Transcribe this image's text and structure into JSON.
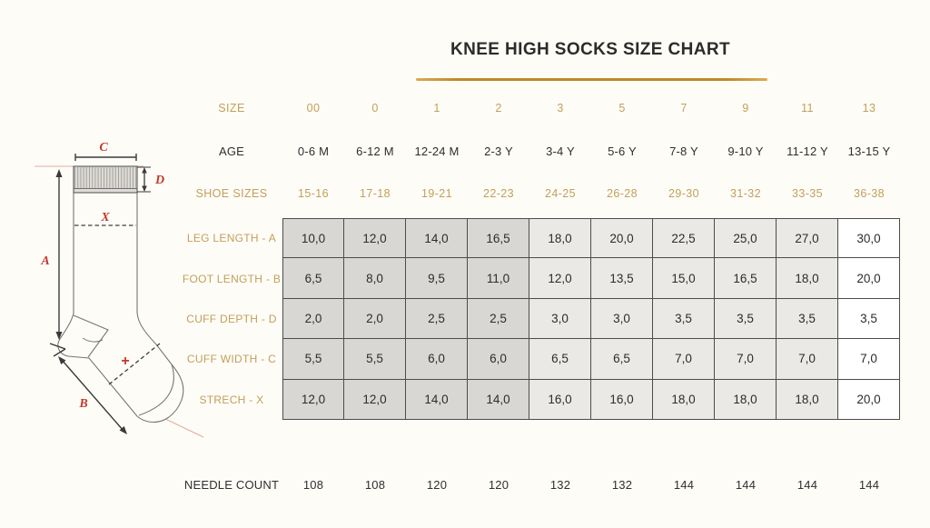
{
  "title": "KNEE HIGH SOCKS SIZE CHART",
  "colors": {
    "gold_text": "#c2a05a",
    "title_underline": "#bf8828",
    "dark_text": "#2f2f2f",
    "diagram_red": "#c4392b",
    "cell_dark": "#d8d7d4",
    "cell_light": "#eae9e6",
    "cell_white": "#ffffff",
    "table_border": "#4c4c4c",
    "background": "#fdfcf7"
  },
  "diagram": {
    "labels": {
      "leg_length": "A",
      "foot_length": "B",
      "cuff_width": "C",
      "cuff_depth": "D",
      "stretch_leg": "X",
      "stretch_foot": "+"
    }
  },
  "chart_data": {
    "type": "table",
    "title": "KNEE HIGH SOCKS SIZE CHART",
    "columns": [
      "00",
      "0",
      "1",
      "2",
      "3",
      "5",
      "7",
      "9",
      "11",
      "13"
    ],
    "rows": [
      {
        "label": "SIZE",
        "kind": "hgold",
        "values": [
          "00",
          "0",
          "1",
          "2",
          "3",
          "5",
          "7",
          "9",
          "11",
          "13"
        ]
      },
      {
        "label": "AGE",
        "kind": "hdark",
        "values": [
          "0-6 M",
          "6-12 M",
          "12-24 M",
          "2-3 Y",
          "3-4 Y",
          "5-6 Y",
          "7-8 Y",
          "9-10 Y",
          "11-12 Y",
          "13-15 Y"
        ]
      },
      {
        "label": "SHOE SIZES",
        "kind": "hgold",
        "values": [
          "15-16",
          "17-18",
          "19-21",
          "22-23",
          "24-25",
          "26-28",
          "29-30",
          "31-32",
          "33-35",
          "36-38"
        ]
      },
      {
        "label": "LEG LENGTH - A",
        "kind": "body",
        "values": [
          "10,0",
          "12,0",
          "14,0",
          "16,5",
          "18,0",
          "20,0",
          "22,5",
          "25,0",
          "27,0",
          "30,0"
        ]
      },
      {
        "label": "FOOT LENGTH - B",
        "kind": "body",
        "values": [
          "6,5",
          "8,0",
          "9,5",
          "11,0",
          "12,0",
          "13,5",
          "15,0",
          "16,5",
          "18,0",
          "20,0"
        ]
      },
      {
        "label": "CUFF DEPTH - D",
        "kind": "body",
        "values": [
          "2,0",
          "2,0",
          "2,5",
          "2,5",
          "3,0",
          "3,0",
          "3,5",
          "3,5",
          "3,5",
          "3,5"
        ]
      },
      {
        "label": "CUFF WIDTH - C",
        "kind": "body",
        "values": [
          "5,5",
          "5,5",
          "6,0",
          "6,0",
          "6,5",
          "6,5",
          "7,0",
          "7,0",
          "7,0",
          "7,0"
        ]
      },
      {
        "label": "STRECH - X",
        "kind": "body",
        "values": [
          "12,0",
          "12,0",
          "14,0",
          "14,0",
          "16,0",
          "16,0",
          "18,0",
          "18,0",
          "18,0",
          "20,0"
        ]
      },
      {
        "label": "NEEDLE COUNT",
        "kind": "footer",
        "values": [
          "108",
          "108",
          "120",
          "120",
          "132",
          "132",
          "144",
          "144",
          "144",
          "144"
        ]
      }
    ],
    "shading": {
      "dark_columns": [
        0,
        1,
        2,
        3
      ],
      "light_columns": [
        4,
        5,
        6,
        7,
        8
      ],
      "white_columns": [
        9
      ]
    }
  }
}
